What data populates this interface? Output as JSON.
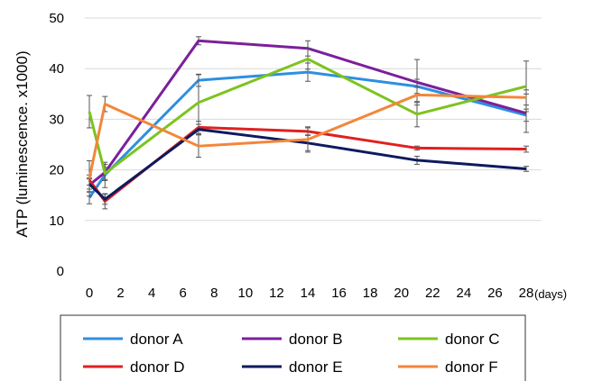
{
  "chart_data": {
    "type": "line",
    "ylabel": "ATP (luminescence. x1000)",
    "xunit": "(days)",
    "xlim": [
      0,
      28
    ],
    "ylim": [
      0,
      50
    ],
    "xticks": [
      0,
      2,
      4,
      6,
      8,
      10,
      12,
      14,
      16,
      18,
      20,
      22,
      24,
      26,
      28
    ],
    "yticks": [
      0,
      10,
      20,
      30,
      40,
      50
    ],
    "grid": "horizontal",
    "legend_position": "bottom",
    "x": [
      0,
      1,
      7,
      14,
      21,
      28
    ],
    "series": [
      {
        "name": "donor A",
        "color": "#2e8fe0",
        "values": [
          14.5,
          19.0,
          37.7,
          39.3,
          36.5,
          30.8
        ],
        "errors": [
          1.2,
          2.5,
          1.2,
          1.8,
          1.4,
          1.2
        ]
      },
      {
        "name": "donor B",
        "color": "#7b1f9c",
        "values": [
          17.0,
          19.5,
          45.5,
          44.0,
          37.3,
          31.2
        ],
        "errors": [
          1.4,
          1.6,
          0.8,
          1.5,
          4.5,
          3.8
        ]
      },
      {
        "name": "donor C",
        "color": "#7dc31f",
        "values": [
          31.5,
          19.3,
          33.3,
          41.9,
          31.0,
          36.5
        ],
        "errors": [
          3.2,
          1.2,
          5.5,
          2.0,
          2.5,
          5.0
        ]
      },
      {
        "name": "donor D",
        "color": "#e02020",
        "values": [
          18.0,
          13.8,
          28.4,
          27.6,
          24.3,
          24.1
        ],
        "errors": [
          1.0,
          1.5,
          1.2,
          0.7,
          0.4,
          0.6
        ]
      },
      {
        "name": "donor E",
        "color": "#0d1a5e",
        "values": [
          17.2,
          14.2,
          28.0,
          25.3,
          21.9,
          20.2
        ],
        "errors": [
          1.0,
          1.0,
          1.0,
          1.5,
          0.8,
          0.5
        ]
      },
      {
        "name": "donor F",
        "color": "#f2873a",
        "values": [
          18.3,
          33.0,
          24.7,
          26.0,
          34.8,
          34.3
        ],
        "errors": [
          3.5,
          1.5,
          2.2,
          2.5,
          1.5,
          1.5
        ]
      }
    ]
  }
}
